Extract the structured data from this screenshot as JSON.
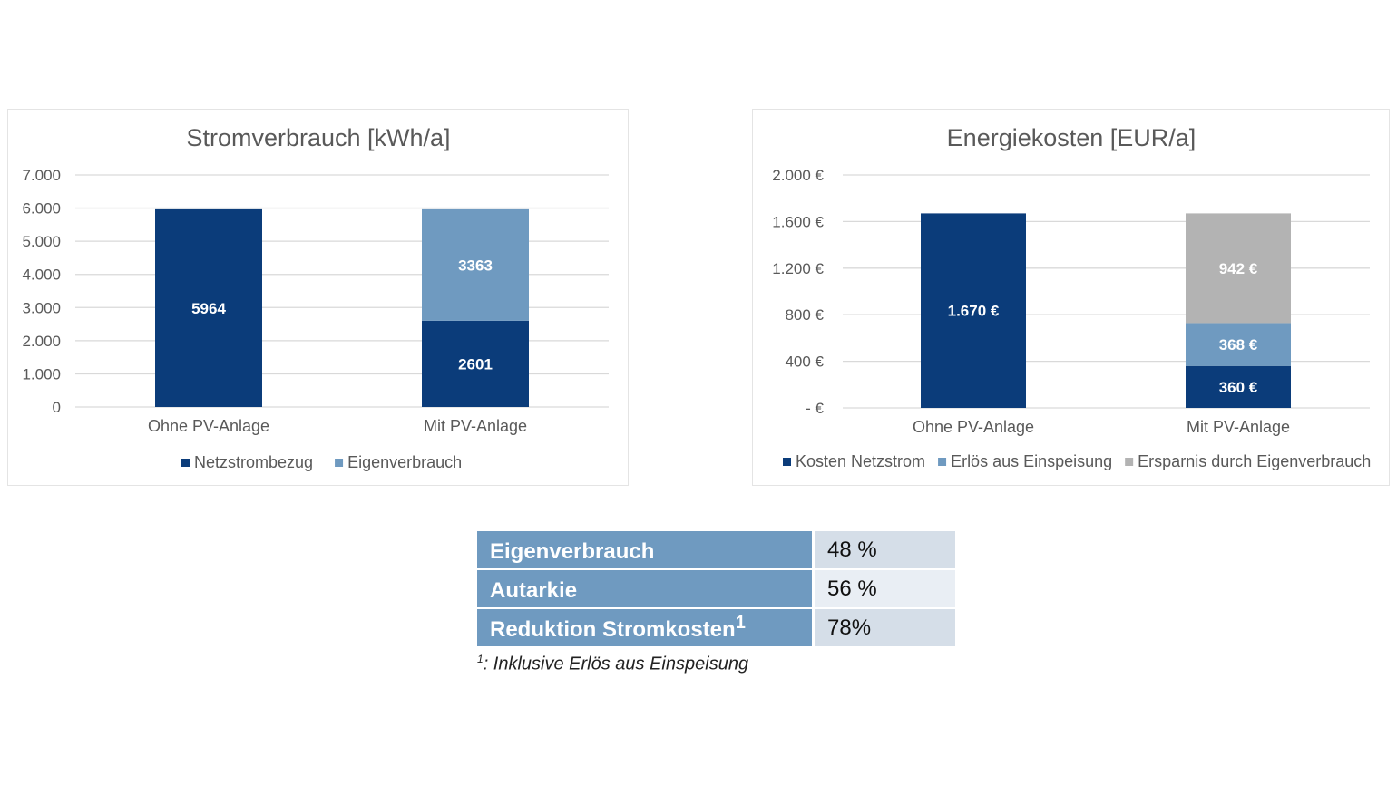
{
  "colors": {
    "dark_blue": "#0b3c7a",
    "light_blue": "#6f9ac0",
    "gray": "#b3b3b3",
    "table_key": "#6f9ac0",
    "table_value": "#d5dee8"
  },
  "chart_data": [
    {
      "type": "bar",
      "stacked": true,
      "title": "Stromverbrauch [kWh/a]",
      "categories": [
        "Ohne PV-Anlage",
        "Mit PV-Anlage"
      ],
      "series": [
        {
          "name": "Netzstrombezug",
          "values": [
            5964,
            2601
          ],
          "labels": [
            "5964",
            "2601"
          ],
          "color": "#0b3c7a"
        },
        {
          "name": "Eigenverbrauch",
          "values": [
            0,
            3363
          ],
          "labels": [
            "",
            "3363"
          ],
          "color": "#6f9ac0"
        }
      ],
      "ylim": [
        0,
        7000
      ],
      "yticks": [
        0,
        1000,
        2000,
        3000,
        4000,
        5000,
        6000,
        7000
      ],
      "ytick_labels": [
        "0",
        "1.000",
        "2.000",
        "3.000",
        "4.000",
        "5.000",
        "6.000",
        "7.000"
      ],
      "grid": true,
      "legend": "bottom"
    },
    {
      "type": "bar",
      "stacked": true,
      "title": "Energiekosten [EUR/a]",
      "categories": [
        "Ohne PV-Anlage",
        "Mit PV-Anlage"
      ],
      "series": [
        {
          "name": "Kosten Netzstrom",
          "values": [
            1670,
            360
          ],
          "labels": [
            "1.670 €",
            "360 €"
          ],
          "color": "#0b3c7a"
        },
        {
          "name": "Erlös aus Einspeisung",
          "values": [
            0,
            368
          ],
          "labels": [
            "",
            "368 €"
          ],
          "color": "#6f9ac0"
        },
        {
          "name": "Ersparnis durch Eigenverbrauch",
          "values": [
            0,
            942
          ],
          "labels": [
            "",
            "942 €"
          ],
          "color": "#b3b3b3"
        }
      ],
      "ylim": [
        0,
        2000
      ],
      "yticks": [
        0,
        400,
        800,
        1200,
        1600,
        2000
      ],
      "ytick_labels": [
        "-   €",
        "400 €",
        "800 €",
        "1.200 €",
        "1.600 €",
        "2.000 €"
      ],
      "grid": true,
      "legend": "bottom"
    }
  ],
  "table": {
    "rows": [
      {
        "label": "Eigenverbrauch",
        "sup": "",
        "value": "48 %"
      },
      {
        "label": "Autarkie",
        "sup": "",
        "value": "56 %"
      },
      {
        "label": "Reduktion Stromkosten",
        "sup": "1",
        "value": "78%"
      }
    ]
  },
  "footnote": {
    "marker": "1",
    "text": ": Inklusive Erlös aus Einspeisung"
  }
}
